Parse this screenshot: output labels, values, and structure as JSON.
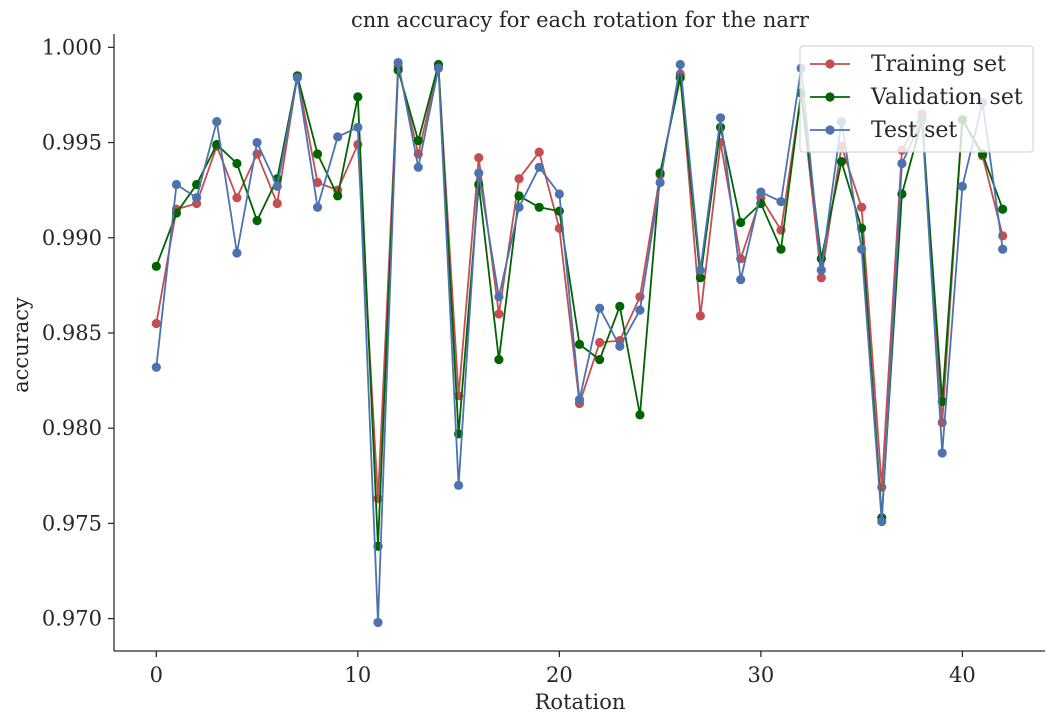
{
  "chart_data": {
    "type": "line",
    "title": "cnn accuracy for each rotation for the narr",
    "xlabel": "Rotation",
    "ylabel": "accuracy",
    "xlim": [
      -2.1,
      44.1
    ],
    "ylim": [
      0.9683,
      1.0007
    ],
    "xticks": [
      0,
      10,
      20,
      30,
      40
    ],
    "xtick_labels": [
      "0",
      "10",
      "20",
      "30",
      "40"
    ],
    "yticks": [
      0.97,
      0.975,
      0.98,
      0.985,
      0.99,
      0.995,
      1.0
    ],
    "ytick_labels": [
      "0.970",
      "0.975",
      "0.980",
      "0.985",
      "0.990",
      "0.995",
      "1.000"
    ],
    "grid": false,
    "legend_position": "top-right",
    "x": [
      0,
      1,
      2,
      3,
      4,
      5,
      6,
      7,
      8,
      9,
      10,
      11,
      12,
      13,
      14,
      15,
      16,
      17,
      18,
      19,
      20,
      21,
      22,
      23,
      24,
      25,
      26,
      27,
      28,
      29,
      30,
      31,
      32,
      33,
      34,
      35,
      36,
      37,
      38,
      39,
      40,
      41,
      42
    ],
    "series": [
      {
        "name": "Training set",
        "color": "#c44e52",
        "values": [
          0.9855,
          0.9915,
          0.9918,
          0.9948,
          0.9921,
          0.9944,
          0.9918,
          0.9985,
          0.9929,
          0.9925,
          0.9949,
          0.9763,
          0.999,
          0.9944,
          0.999,
          0.9817,
          0.9942,
          0.986,
          0.9931,
          0.9945,
          0.9905,
          0.9813,
          0.9845,
          0.9846,
          0.9869,
          0.9933,
          0.9986,
          0.9859,
          0.995,
          0.9889,
          0.9921,
          0.9904,
          0.9976,
          0.9879,
          0.9948,
          0.9916,
          0.9769,
          0.9946,
          0.9965,
          0.9803,
          0.9962,
          0.9943,
          0.9901
        ]
      },
      {
        "name": "Validation set",
        "color": "#006400",
        "values": [
          0.9885,
          0.9913,
          0.9928,
          0.9949,
          0.9939,
          0.9909,
          0.9931,
          0.9985,
          0.9944,
          0.9922,
          0.9974,
          0.9738,
          0.9988,
          0.9951,
          0.9991,
          0.9797,
          0.9928,
          0.9836,
          0.9922,
          0.9916,
          0.9914,
          0.9844,
          0.9836,
          0.9864,
          0.9807,
          0.9934,
          0.9984,
          0.9879,
          0.9958,
          0.9908,
          0.9918,
          0.9894,
          0.9976,
          0.9889,
          0.994,
          0.9905,
          0.9753,
          0.9923,
          0.9962,
          0.9814,
          0.9962,
          0.9944,
          0.9915
        ]
      },
      {
        "name": "Test set",
        "color": "#4c72b0",
        "values": [
          0.9832,
          0.9928,
          0.9921,
          0.9961,
          0.9892,
          0.995,
          0.9927,
          0.9984,
          0.9916,
          0.9953,
          0.9958,
          0.9698,
          0.9992,
          0.9937,
          0.9989,
          0.977,
          0.9934,
          0.9869,
          0.9916,
          0.9937,
          0.9923,
          0.9815,
          0.9863,
          0.9843,
          0.9862,
          0.9929,
          0.9991,
          0.9883,
          0.9963,
          0.9878,
          0.9924,
          0.9919,
          0.9989,
          0.9883,
          0.9961,
          0.9894,
          0.9751,
          0.9939,
          0.9962,
          0.9787,
          0.9927,
          0.9971,
          0.9894
        ]
      }
    ]
  }
}
